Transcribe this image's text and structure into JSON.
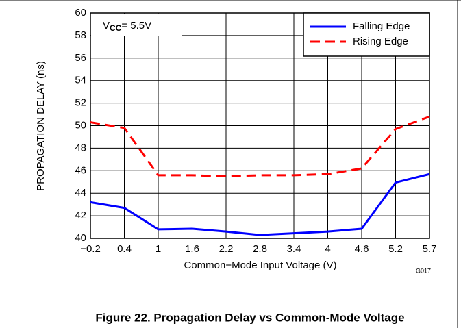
{
  "chart_data": {
    "type": "line",
    "title": "Figure 22. Propagation Delay vs Common-Mode Voltage",
    "xlabel": "Common−Mode Input Voltage (V)",
    "ylabel": "PROPAGATION DELAY (ns)",
    "annotation": {
      "main": "V",
      "sub": "CC",
      "rest": "= 5.5V"
    },
    "code": "G017",
    "categories": [
      "−0.2",
      "0.4",
      "1",
      "1.6",
      "2.2",
      "2.8",
      "3.4",
      "4",
      "4.6",
      "5.2",
      "5.7"
    ],
    "series": [
      {
        "name": "Falling Edge",
        "color": "#0000ff",
        "dash": "solid",
        "values": [
          43.2,
          42.7,
          40.8,
          40.85,
          40.6,
          40.3,
          40.45,
          40.6,
          40.85,
          44.95,
          45.7
        ]
      },
      {
        "name": "Rising Edge",
        "color": "#ff0000",
        "dash": "dashed",
        "values": [
          50.3,
          49.8,
          45.6,
          45.6,
          45.5,
          45.6,
          45.6,
          45.7,
          46.2,
          49.7,
          50.8
        ]
      }
    ],
    "ylim": [
      40,
      60
    ],
    "yticks": [
      40,
      42,
      44,
      46,
      48,
      50,
      52,
      54,
      56,
      58,
      60
    ],
    "grid": true,
    "legend": "top-right"
  }
}
